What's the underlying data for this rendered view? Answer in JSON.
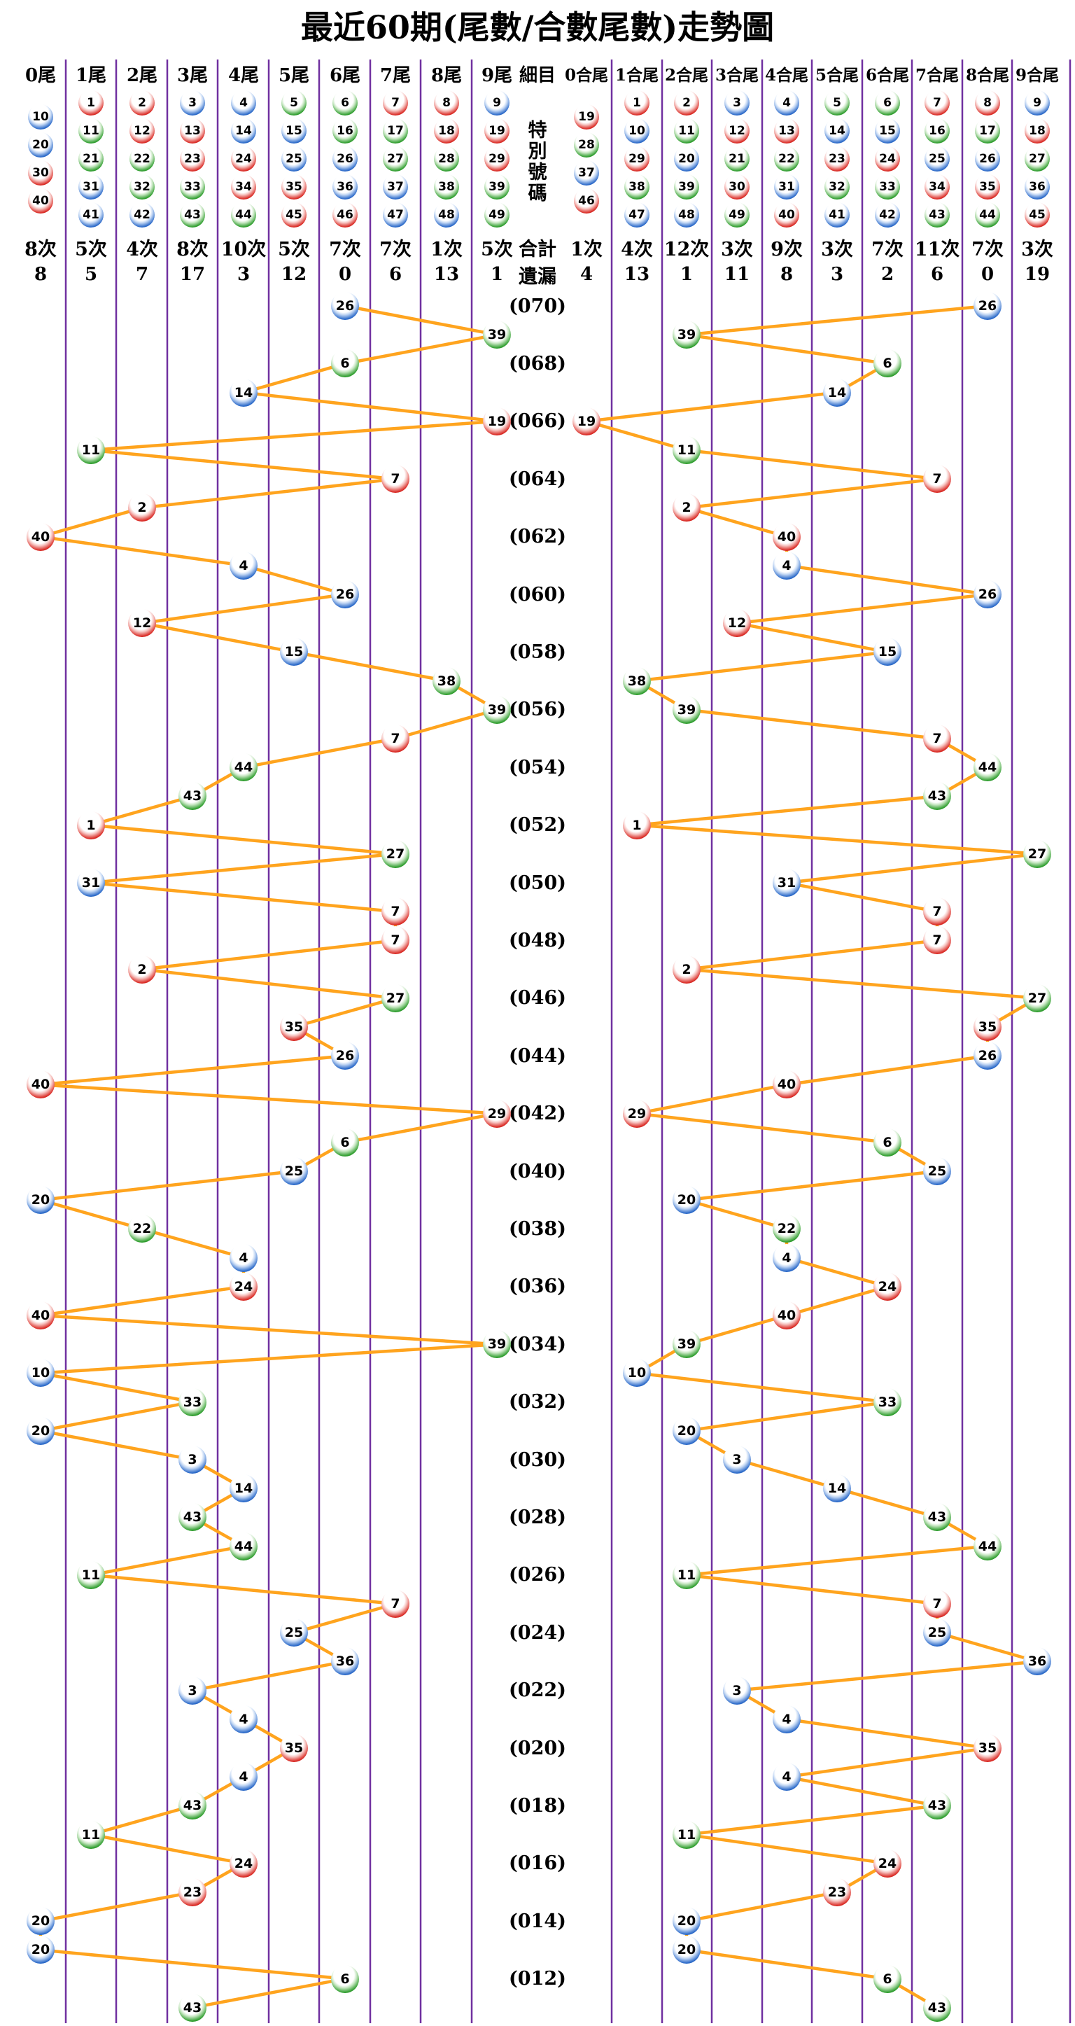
{
  "title": "最近60期(尾數/合數尾數)走勢圖",
  "detail_column": {
    "header": "細目",
    "special_label": "特別號碼",
    "total_label": "合計",
    "miss_label": "遺漏"
  },
  "chart_data": {
    "type": "scatter",
    "title": "最近60期(尾數/合數尾數)走勢圖",
    "description": "60-draw lottery special-number trend chart; left panel positions each draw by last digit (0尾-9尾), right panel by tail of digit sum (0合尾-9合尾); consecutive draws joined by orange lines; newest draw (070) at top.",
    "rows": 60,
    "numbers": [
      26,
      39,
      6,
      14,
      19,
      11,
      7,
      2,
      40,
      4,
      26,
      12,
      15,
      38,
      39,
      7,
      44,
      43,
      1,
      27,
      31,
      7,
      7,
      2,
      27,
      35,
      26,
      40,
      29,
      6,
      25,
      20,
      22,
      4,
      24,
      40,
      39,
      10,
      33,
      20,
      3,
      14,
      43,
      44,
      11,
      7,
      25,
      36,
      3,
      4,
      35,
      4,
      43,
      11,
      24,
      23,
      20,
      20,
      6,
      43
    ],
    "period_labels": [
      "(070)",
      "(068)",
      "(066)",
      "(064)",
      "(062)",
      "(060)",
      "(058)",
      "(056)",
      "(054)",
      "(052)",
      "(050)",
      "(048)",
      "(046)",
      "(044)",
      "(042)",
      "(040)",
      "(038)",
      "(036)",
      "(034)",
      "(032)",
      "(030)",
      "(028)",
      "(026)",
      "(024)",
      "(022)",
      "(020)",
      "(018)",
      "(016)",
      "(014)",
      "(012)"
    ],
    "left_axis": {
      "columns": [
        "0尾",
        "1尾",
        "2尾",
        "3尾",
        "4尾",
        "5尾",
        "6尾",
        "7尾",
        "8尾",
        "9尾"
      ],
      "counts": [
        "8次",
        "5次",
        "4次",
        "8次",
        "10次",
        "5次",
        "7次",
        "7次",
        "1次",
        "5次"
      ],
      "misses": [
        "8",
        "5",
        "7",
        "17",
        "3",
        "12",
        "0",
        "6",
        "13",
        "1"
      ],
      "header_balls": [
        [
          10,
          20,
          30,
          40
        ],
        [
          1,
          11,
          21,
          31,
          41
        ],
        [
          2,
          12,
          22,
          32,
          42
        ],
        [
          3,
          13,
          23,
          33,
          43
        ],
        [
          4,
          14,
          24,
          34,
          44
        ],
        [
          5,
          15,
          25,
          35,
          45
        ],
        [
          6,
          16,
          26,
          36,
          46
        ],
        [
          7,
          17,
          27,
          37,
          47
        ],
        [
          8,
          18,
          28,
          38,
          48
        ],
        [
          9,
          19,
          29,
          39,
          49
        ]
      ]
    },
    "right_axis": {
      "columns": [
        "0合尾",
        "1合尾",
        "2合尾",
        "3合尾",
        "4合尾",
        "5合尾",
        "6合尾",
        "7合尾",
        "8合尾",
        "9合尾"
      ],
      "counts": [
        "1次",
        "4次",
        "12次",
        "3次",
        "9次",
        "3次",
        "7次",
        "11次",
        "7次",
        "3次"
      ],
      "misses": [
        "4",
        "13",
        "1",
        "11",
        "8",
        "3",
        "2",
        "6",
        "0",
        "19"
      ],
      "header_balls": [
        [
          19,
          28,
          37,
          46
        ],
        [
          1,
          10,
          29,
          38,
          47
        ],
        [
          2,
          11,
          20,
          39,
          48
        ],
        [
          3,
          12,
          21,
          30,
          49
        ],
        [
          4,
          13,
          22,
          31,
          40
        ],
        [
          5,
          14,
          23,
          32,
          41
        ],
        [
          6,
          15,
          24,
          33,
          42
        ],
        [
          7,
          16,
          25,
          34,
          43
        ],
        [
          8,
          17,
          26,
          35,
          44
        ],
        [
          9,
          18,
          27,
          36,
          45
        ]
      ]
    },
    "legend_position": "none",
    "grid": true
  },
  "colors": {
    "red": "#da2a24",
    "blue": "#2a69c9",
    "green": "#2f9e2e",
    "line": "#ffa41e",
    "grid": "#7030a0",
    "text": "#000000",
    "background": "#ffffff",
    "red_numbers": [
      1,
      2,
      7,
      8,
      12,
      13,
      18,
      19,
      23,
      24,
      29,
      30,
      34,
      35,
      40,
      45,
      46
    ],
    "blue_numbers": [
      3,
      4,
      9,
      10,
      14,
      15,
      20,
      25,
      26,
      31,
      36,
      37,
      41,
      42,
      47,
      48
    ],
    "green_numbers": [
      5,
      6,
      11,
      16,
      17,
      21,
      22,
      27,
      28,
      32,
      33,
      38,
      39,
      43,
      44,
      49
    ]
  }
}
